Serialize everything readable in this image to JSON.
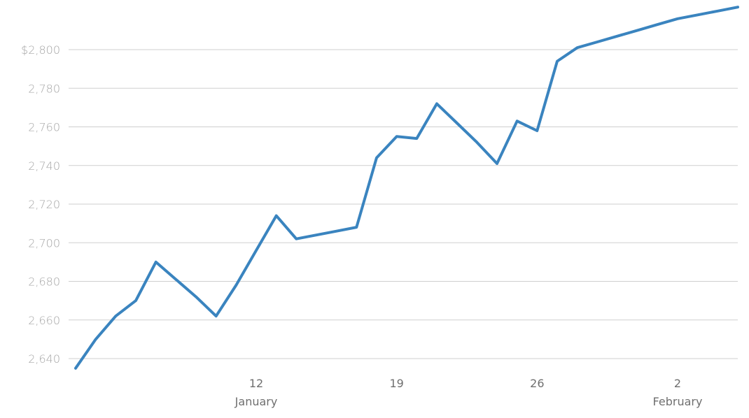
{
  "chart_data": {
    "type": "line",
    "title": "",
    "xlabel": "",
    "ylabel": "",
    "ylim": [
      2630,
      2820
    ],
    "grid": true,
    "colors": {
      "series": "#3a84bf",
      "grid": "#cfcfcf"
    },
    "y_ticks": [
      {
        "value": 2640,
        "label": "2,640"
      },
      {
        "value": 2660,
        "label": "2,660"
      },
      {
        "value": 2680,
        "label": "2,680"
      },
      {
        "value": 2700,
        "label": "2,700"
      },
      {
        "value": 2720,
        "label": "2,720"
      },
      {
        "value": 2740,
        "label": "2,740"
      },
      {
        "value": 2760,
        "label": "2,760"
      },
      {
        "value": 2780,
        "label": "2,780"
      },
      {
        "value": 2800,
        "label": "$2,800"
      }
    ],
    "x_ticks": [
      {
        "date": "2018-01-12",
        "label": "12",
        "month": "January"
      },
      {
        "date": "2018-01-19",
        "label": "19",
        "month": ""
      },
      {
        "date": "2018-01-26",
        "label": "26",
        "month": ""
      },
      {
        "date": "2018-02-02",
        "label": "2",
        "month": "February"
      }
    ],
    "series": [
      {
        "x": [
          "2018-01-03",
          "2018-01-04",
          "2018-01-05",
          "2018-01-06",
          "2018-01-07",
          "2018-01-08",
          "2018-01-09",
          "2018-01-10",
          "2018-01-11",
          "2018-01-12",
          "2018-01-13",
          "2018-01-14",
          "2018-01-15",
          "2018-01-16",
          "2018-01-17",
          "2018-01-18",
          "2018-01-19",
          "2018-01-20",
          "2018-01-21",
          "2018-01-22",
          "2018-01-23",
          "2018-01-24",
          "2018-01-25",
          "2018-01-26",
          "2018-01-27",
          "2018-01-28",
          "2018-01-29",
          "2018-01-30",
          "2018-01-31",
          "2018-02-01",
          "2018-02-02",
          "2018-02-03",
          "2018-02-04",
          "2018-02-05"
        ],
        "values": [
          2635,
          2650,
          2662,
          2670,
          2690,
          2681,
          2672,
          2662,
          2678,
          2696,
          2714,
          2702,
          2704,
          2706,
          2708,
          2744,
          2755,
          2754,
          2772,
          2762,
          2752,
          2741,
          2763,
          2758,
          2794,
          2801,
          2804,
          2807,
          2810,
          2813,
          2816,
          2818,
          2820,
          2822
        ]
      }
    ]
  }
}
